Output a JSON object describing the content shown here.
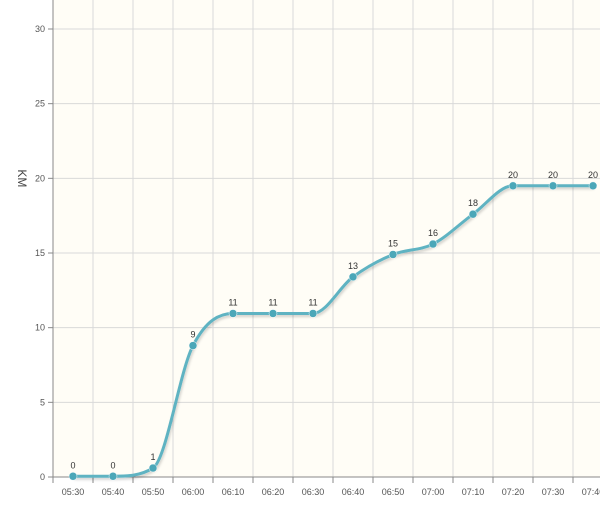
{
  "chart_data": {
    "type": "line",
    "title": "",
    "xlabel": "",
    "ylabel": "KM",
    "ylim": [
      0,
      30
    ],
    "yticks": [
      0,
      5,
      10,
      15,
      20,
      25,
      30
    ],
    "grid": true,
    "categories": [
      "05:30",
      "05:40",
      "05:50",
      "06:00",
      "06:10",
      "06:20",
      "06:30",
      "06:40",
      "06:50",
      "07:00",
      "07:10",
      "07:20",
      "07:30",
      "07:40"
    ],
    "series": [
      {
        "values": [
          0.05,
          0.05,
          0.6,
          8.8,
          10.95,
          10.95,
          10.95,
          13.4,
          14.9,
          15.6,
          17.6,
          19.5,
          19.5,
          19.5
        ],
        "labels": [
          "0",
          "0",
          "1",
          "9",
          "11",
          "11",
          "11",
          "13",
          "15",
          "16",
          "18",
          "20",
          "20",
          "20"
        ]
      }
    ],
    "colors": {
      "line": "#5fb3c2",
      "marker": "#4ba7b8",
      "plot_background": "#fffdf6",
      "grid": "#d9d9d9",
      "axis": "#888888"
    }
  }
}
